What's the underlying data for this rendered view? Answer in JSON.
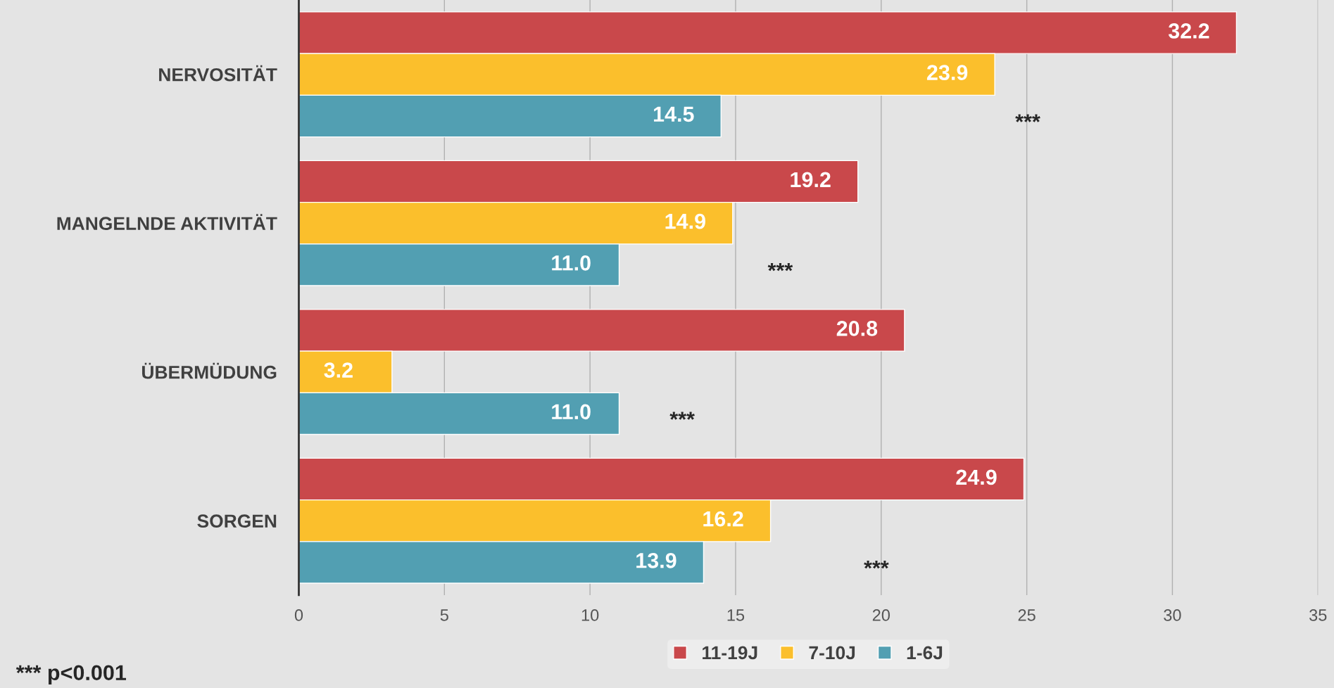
{
  "chart_data": {
    "type": "bar",
    "orientation": "horizontal",
    "categories": [
      "NERVOSITÄT",
      "MANGELNDE AKTIVITÄT",
      "ÜBERMÜDUNG",
      "SORGEN"
    ],
    "series": [
      {
        "name": "11-19J",
        "color": "#c9484b",
        "values": [
          32.2,
          19.2,
          20.8,
          24.9
        ],
        "value_labels": [
          "32.2",
          "19.2",
          "20.8",
          "24.9"
        ]
      },
      {
        "name": "7-10J",
        "color": "#fbbf2c",
        "values": [
          23.9,
          14.9,
          3.2,
          16.2
        ],
        "value_labels": [
          "23.9",
          "14.9",
          "3.2",
          "16.2"
        ]
      },
      {
        "name": "1-6J",
        "color": "#529fb2",
        "values": [
          14.5,
          11.0,
          11.0,
          13.9
        ],
        "value_labels": [
          "14.5",
          "11.0",
          "11.0",
          "13.9"
        ]
      }
    ],
    "xlim": [
      0,
      35
    ],
    "xticks": [
      0,
      5,
      10,
      15,
      20,
      25,
      30,
      35
    ],
    "grid": "x",
    "legend": "bottom",
    "annotations": [
      "***",
      "***",
      "***",
      "***",
      "*** p<0.001"
    ]
  }
}
